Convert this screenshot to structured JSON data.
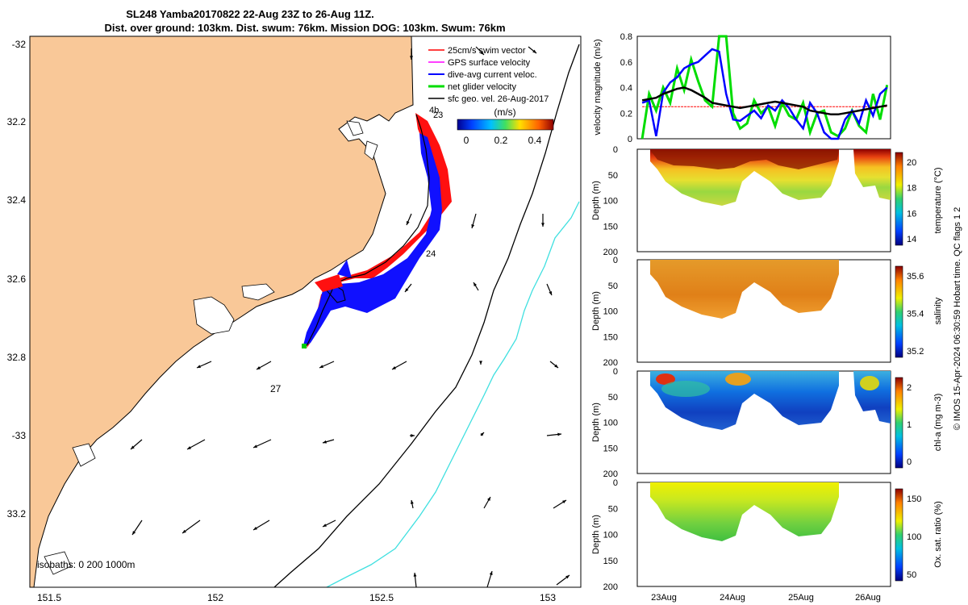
{
  "figure": {
    "title_line1": "SL248 Yamba20170822 22-Aug 23Z to 26-Aug 11Z.",
    "title_line2": "Dist. over ground: 103km. Dist. swum: 76km. Mission DOG: 103km. Swum: 76km",
    "side_note": "© IMOS 15-Apr-2024 06:30:59 Hobart time. QC flags 1 2"
  },
  "map": {
    "lat_ticks": [
      "-32",
      "32.2",
      "32.4",
      "32.6",
      "32.8",
      "-33",
      "33.2"
    ],
    "lon_ticks": [
      "151.5",
      "152",
      "152.5",
      "153"
    ],
    "legend": [
      {
        "label": "25cm/s swim vector",
        "color": "#ff0000"
      },
      {
        "label": "GPS surface velocity",
        "color": "#ff00ff"
      },
      {
        "label": "dive-avg current veloc.",
        "color": "#0000ff"
      },
      {
        "label": "net glider velocity",
        "color": "#00dd00"
      },
      {
        "label": "sfc geo. vel. 26-Aug-2017",
        "color": "#000000"
      }
    ],
    "colorbar_label": "(m/s)",
    "colorbar_ticks": [
      "0",
      "0.2",
      "0.4"
    ],
    "day_labels": [
      "4b",
      "23",
      "24",
      "27"
    ],
    "isobaths_label": "isobaths: 0   200  1000m",
    "land_color": "#f9c898",
    "isobath_200_color": "#000000",
    "isobath_1000_color": "#40e0e0"
  },
  "chart_data": [
    {
      "type": "line",
      "ylabel": "velocity magnitude (m/s)",
      "ylim": [
        0,
        0.8
      ],
      "y_ticks": [
        "0",
        "0.2",
        "0.4",
        "0.6",
        "0.8"
      ],
      "x": [
        23.0,
        23.1,
        23.2,
        23.3,
        23.4,
        23.5,
        23.6,
        23.7,
        23.8,
        23.9,
        24.0,
        24.1,
        24.2,
        24.3,
        24.4,
        24.5,
        24.6,
        24.7,
        24.8,
        24.9,
        25.0,
        25.1,
        25.2,
        25.3,
        25.4,
        25.5,
        25.6,
        25.7,
        25.8,
        25.9,
        26.0,
        26.1,
        26.2,
        26.3,
        26.4,
        26.5
      ],
      "series": [
        {
          "color": "#ff0000",
          "values": [
            0.25,
            0.25,
            0.25,
            0.25,
            0.25,
            0.25,
            0.25,
            0.25,
            0.25,
            0.25,
            0.25,
            0.25,
            0.25,
            0.25,
            0.25,
            0.25,
            0.25,
            0.25,
            0.25,
            0.25,
            0.25,
            0.25,
            0.25,
            0.25,
            0.25,
            0.25,
            0.25,
            0.25,
            0.25,
            0.25,
            0.25,
            0.25,
            0.25,
            0.25,
            0.25,
            0.25
          ]
        },
        {
          "color": "#00dd00",
          "values": [
            0.0,
            0.35,
            0.22,
            0.4,
            0.28,
            0.55,
            0.38,
            0.62,
            0.45,
            0.3,
            0.25,
            0.8,
            0.8,
            0.2,
            0.08,
            0.12,
            0.3,
            0.2,
            0.25,
            0.1,
            0.28,
            0.18,
            0.15,
            0.28,
            0.05,
            0.2,
            0.22,
            0.05,
            0.02,
            0.08,
            0.22,
            0.1,
            0.05,
            0.35,
            0.15,
            0.42
          ]
        },
        {
          "color": "#0000ff",
          "values": [
            0.28,
            0.3,
            0.02,
            0.36,
            0.44,
            0.48,
            0.55,
            0.58,
            0.6,
            0.65,
            0.7,
            0.68,
            0.35,
            0.15,
            0.14,
            0.18,
            0.22,
            0.16,
            0.26,
            0.22,
            0.3,
            0.24,
            0.15,
            0.08,
            0.28,
            0.2,
            0.05,
            0.0,
            0.0,
            0.15,
            0.22,
            0.12,
            0.3,
            0.18,
            0.35,
            0.4
          ]
        },
        {
          "color": "#000000",
          "values": [
            0.3,
            0.31,
            0.32,
            0.35,
            0.37,
            0.39,
            0.4,
            0.38,
            0.35,
            0.32,
            0.28,
            0.27,
            0.26,
            0.25,
            0.24,
            0.25,
            0.26,
            0.27,
            0.28,
            0.29,
            0.28,
            0.27,
            0.26,
            0.25,
            0.22,
            0.21,
            0.2,
            0.19,
            0.19,
            0.2,
            0.21,
            0.22,
            0.23,
            0.24,
            0.25,
            0.26
          ]
        }
      ]
    },
    {
      "type": "heatmap",
      "ylabel": "Depth (m)",
      "clabel": "temperature (°C)",
      "y_ticks": [
        "0",
        "50",
        "100",
        "150",
        "200"
      ],
      "c_ticks": [
        "20",
        "18",
        "16",
        "14"
      ]
    },
    {
      "type": "heatmap",
      "ylabel": "Depth (m)",
      "clabel": "salinity",
      "y_ticks": [
        "0",
        "50",
        "100",
        "150",
        "200"
      ],
      "c_ticks": [
        "35.6",
        "35.4",
        "35.2"
      ]
    },
    {
      "type": "heatmap",
      "ylabel": "Depth (m)",
      "clabel": "chl-a (mg m-3)",
      "y_ticks": [
        "0",
        "50",
        "100",
        "150",
        "200"
      ],
      "c_ticks": [
        "2",
        "1",
        "0"
      ]
    },
    {
      "type": "heatmap",
      "ylabel": "Depth (m)",
      "clabel": "Ox. sat. ratio (%)",
      "y_ticks": [
        "0",
        "50",
        "100",
        "150",
        "200"
      ],
      "c_ticks": [
        "150",
        "100",
        "50"
      ],
      "x_ticks": [
        "23Aug",
        "24Aug",
        "25Aug",
        "26Aug"
      ]
    }
  ]
}
